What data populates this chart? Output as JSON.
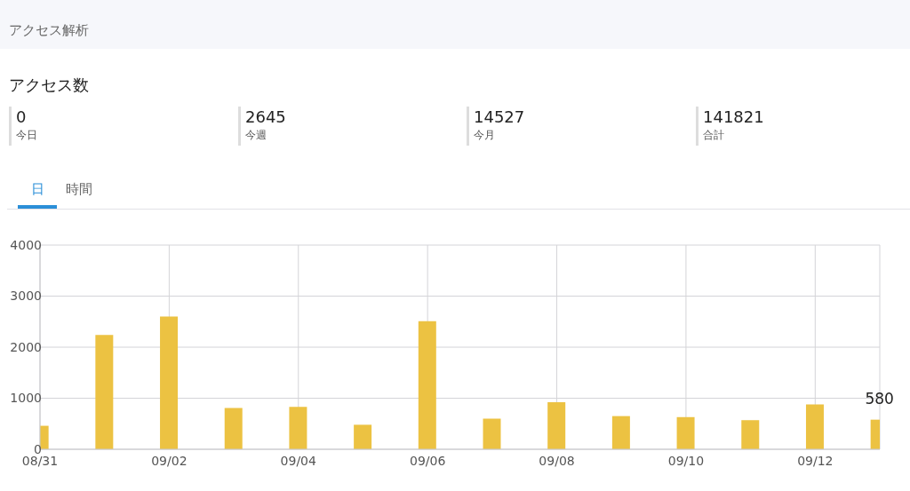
{
  "chart_data": {
    "type": "bar",
    "title": "アクセス解析",
    "subtitle": "アクセス数",
    "annotations": [
      "0",
      "今日",
      "2645",
      "今週",
      "14527",
      "今月",
      "141821",
      "合計",
      "日",
      "時間"
    ],
    "categories": [
      "08/31",
      null,
      "09/02",
      null,
      "09/04",
      null,
      "09/06",
      null,
      "09/08",
      null,
      "09/10",
      null,
      "09/12",
      null
    ],
    "values": [
      460,
      2240,
      2600,
      810,
      830,
      480,
      2510,
      600,
      920,
      650,
      630,
      570,
      880,
      580
    ],
    "value_labels": [
      null,
      null,
      null,
      null,
      null,
      null,
      null,
      null,
      null,
      null,
      null,
      null,
      null,
      "580"
    ],
    "color": "#ecc242",
    "ylim": [
      0,
      4000
    ],
    "yticks": [
      0,
      1000,
      2000,
      3000,
      4000
    ],
    "grid": true
  }
}
